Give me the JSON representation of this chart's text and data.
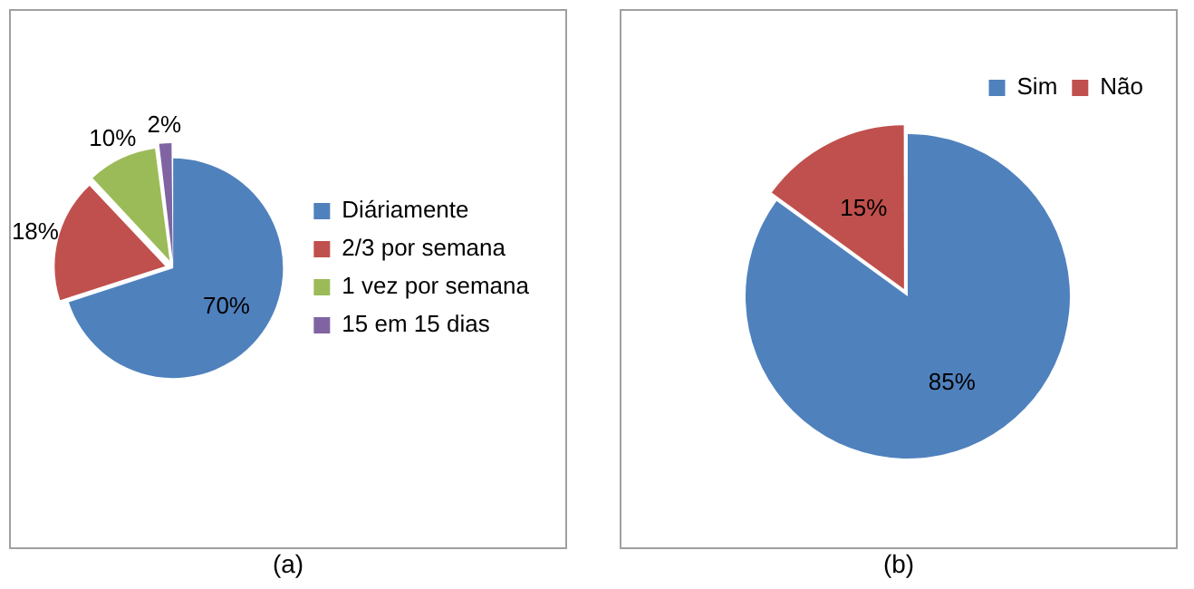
{
  "chart_data": [
    {
      "type": "pie",
      "categories": [
        "Diáriamente",
        "2/3 por semana",
        "1 vez por semana",
        "15 em 15 dias"
      ],
      "values": [
        70,
        18,
        10,
        2
      ],
      "colors": [
        "#4f81bd",
        "#c0504d",
        "#9bbb59",
        "#8064a2"
      ],
      "value_labels": [
        "70%",
        "18%",
        "10%",
        "2%"
      ],
      "legend": "right",
      "annotations": [
        "(a)"
      ]
    },
    {
      "type": "pie",
      "categories": [
        "Sim",
        "Não"
      ],
      "values": [
        85,
        15
      ],
      "colors": [
        "#4f81bd",
        "#c0504d"
      ],
      "value_labels": [
        "85%",
        "15%"
      ],
      "legend": "top right",
      "annotations": [
        "(b)"
      ]
    }
  ]
}
